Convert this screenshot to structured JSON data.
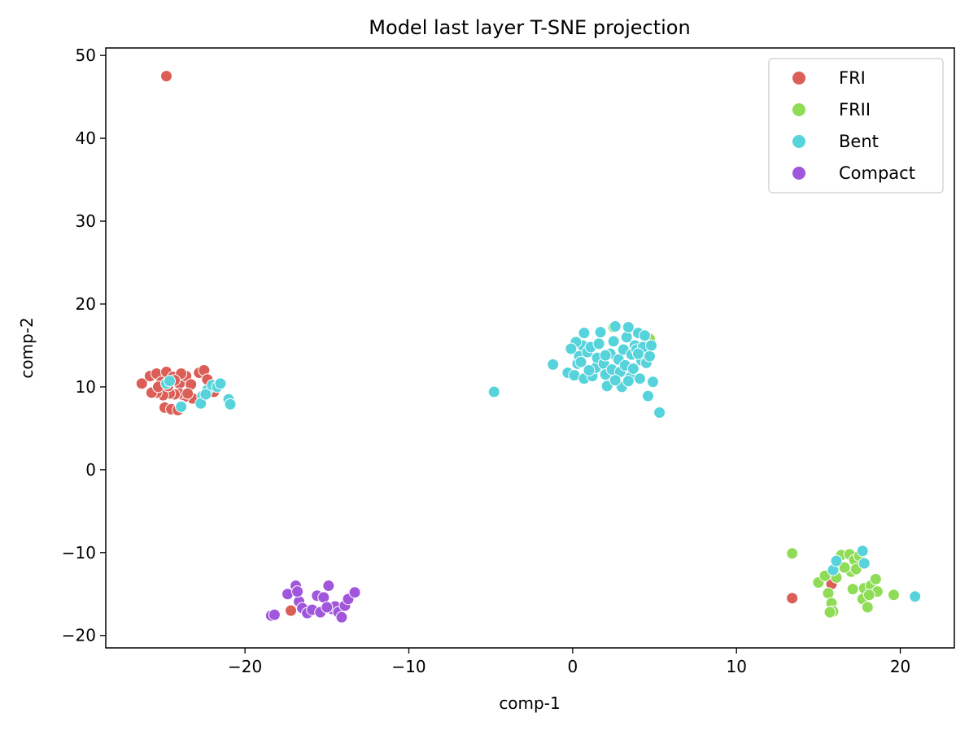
{
  "chart_data": {
    "type": "scatter",
    "title": "Model last layer T-SNE projection",
    "xlabel": "comp-1",
    "ylabel": "comp-2",
    "xlim": [
      -28.5,
      23.3
    ],
    "ylim": [
      -21.5,
      50.9
    ],
    "xticks": [
      -20,
      -10,
      0,
      10,
      20
    ],
    "yticks": [
      -20,
      -10,
      0,
      10,
      20,
      30,
      40,
      50
    ],
    "xtick_labels": [
      "−20",
      "−10",
      "0",
      "10",
      "20"
    ],
    "ytick_labels": [
      "−20",
      "−10",
      "0",
      "10",
      "20",
      "30",
      "40",
      "50"
    ],
    "grid": false,
    "legend_position": "top-right",
    "series": [
      {
        "name": "FRI",
        "color": "#db5f57",
        "points": [
          [
            -24.8,
            47.5
          ],
          [
            -26.3,
            10.4
          ],
          [
            -25.8,
            11.3
          ],
          [
            -25.4,
            11.6
          ],
          [
            -25.1,
            10.6
          ],
          [
            -24.8,
            11.8
          ],
          [
            -24.4,
            11.2
          ],
          [
            -24.0,
            10.4
          ],
          [
            -23.6,
            11.3
          ],
          [
            -23.3,
            10.3
          ],
          [
            -22.8,
            11.7
          ],
          [
            -22.5,
            12.0
          ],
          [
            -22.3,
            10.9
          ],
          [
            -21.9,
            9.4
          ],
          [
            -22.7,
            8.7
          ],
          [
            -23.2,
            8.6
          ],
          [
            -23.7,
            8.8
          ],
          [
            -24.0,
            9.2
          ],
          [
            -24.3,
            9.1
          ],
          [
            -24.6,
            9.2
          ],
          [
            -25.0,
            9.0
          ],
          [
            -25.4,
            9.3
          ],
          [
            -25.7,
            9.3
          ],
          [
            -24.9,
            7.5
          ],
          [
            -24.5,
            7.3
          ],
          [
            -24.1,
            7.2
          ],
          [
            -23.9,
            7.7
          ],
          [
            -23.5,
            9.2
          ],
          [
            -24.7,
            10.1
          ],
          [
            -25.3,
            10.0
          ],
          [
            -23.9,
            11.6
          ],
          [
            -24.3,
            10.8
          ],
          [
            -17.2,
            -17.0
          ],
          [
            15.8,
            -13.8
          ],
          [
            13.4,
            -15.5
          ]
        ]
      },
      {
        "name": "FRII",
        "color": "#8fdc57",
        "points": [
          [
            13.4,
            -10.1
          ],
          [
            15.0,
            -13.6
          ],
          [
            15.4,
            -12.8
          ],
          [
            15.6,
            -14.9
          ],
          [
            15.8,
            -16.1
          ],
          [
            15.9,
            -17.1
          ],
          [
            15.7,
            -17.2
          ],
          [
            16.4,
            -10.3
          ],
          [
            16.9,
            -10.2
          ],
          [
            17.2,
            -10.9
          ],
          [
            17.0,
            -12.3
          ],
          [
            17.1,
            -14.4
          ],
          [
            17.5,
            -10.4
          ],
          [
            17.8,
            -14.3
          ],
          [
            17.7,
            -15.6
          ],
          [
            18.0,
            -16.6
          ],
          [
            18.2,
            -14.0
          ],
          [
            18.5,
            -13.2
          ],
          [
            18.6,
            -14.7
          ],
          [
            19.6,
            -15.1
          ],
          [
            16.1,
            -13.0
          ],
          [
            17.3,
            -12.0
          ],
          [
            16.6,
            -11.8
          ],
          [
            18.1,
            -15.1
          ],
          [
            2.5,
            17.2
          ],
          [
            4.7,
            15.8
          ]
        ]
      },
      {
        "name": "Bent",
        "color": "#57d3db",
        "points": [
          [
            -24.8,
            10.4
          ],
          [
            -24.6,
            10.7
          ],
          [
            -23.9,
            7.6
          ],
          [
            -22.6,
            8.9
          ],
          [
            -22.7,
            8.0
          ],
          [
            -22.3,
            9.6
          ],
          [
            -22.0,
            10.2
          ],
          [
            -21.7,
            10.0
          ],
          [
            -21.5,
            10.4
          ],
          [
            -21.0,
            8.5
          ],
          [
            -20.9,
            7.9
          ],
          [
            -22.4,
            9.1
          ],
          [
            -4.8,
            9.4
          ],
          [
            -1.2,
            12.7
          ],
          [
            -0.3,
            11.7
          ],
          [
            0.1,
            11.4
          ],
          [
            0.3,
            12.8
          ],
          [
            0.4,
            13.7
          ],
          [
            0.6,
            15.0
          ],
          [
            0.7,
            16.5
          ],
          [
            0.9,
            14.2
          ],
          [
            1.1,
            14.8
          ],
          [
            0.7,
            11.0
          ],
          [
            1.2,
            11.3
          ],
          [
            1.4,
            12.3
          ],
          [
            1.5,
            13.5
          ],
          [
            1.6,
            15.2
          ],
          [
            1.7,
            16.6
          ],
          [
            1.9,
            12.8
          ],
          [
            2.0,
            11.5
          ],
          [
            2.1,
            10.1
          ],
          [
            2.3,
            14.0
          ],
          [
            2.4,
            12.1
          ],
          [
            2.5,
            15.5
          ],
          [
            2.6,
            17.3
          ],
          [
            2.8,
            13.3
          ],
          [
            2.9,
            11.8
          ],
          [
            3.0,
            10.0
          ],
          [
            3.1,
            14.5
          ],
          [
            3.2,
            12.6
          ],
          [
            3.3,
            16.0
          ],
          [
            3.4,
            17.2
          ],
          [
            3.5,
            11.1
          ],
          [
            3.6,
            13.9
          ],
          [
            3.7,
            12.2
          ],
          [
            3.8,
            15.0
          ],
          [
            3.9,
            14.5
          ],
          [
            4.0,
            16.5
          ],
          [
            4.1,
            11.0
          ],
          [
            4.2,
            13.2
          ],
          [
            4.3,
            14.8
          ],
          [
            4.4,
            16.2
          ],
          [
            4.5,
            12.9
          ],
          [
            4.6,
            8.9
          ],
          [
            4.7,
            13.7
          ],
          [
            4.8,
            15.0
          ],
          [
            4.9,
            10.6
          ],
          [
            5.3,
            6.9
          ],
          [
            0.2,
            15.4
          ],
          [
            -0.1,
            14.6
          ],
          [
            0.5,
            13.0
          ],
          [
            2.6,
            10.8
          ],
          [
            3.4,
            10.7
          ],
          [
            4.0,
            14.0
          ],
          [
            1.0,
            12.0
          ],
          [
            2.0,
            13.8
          ],
          [
            15.9,
            -12.1
          ],
          [
            16.1,
            -11.0
          ],
          [
            17.7,
            -9.8
          ],
          [
            17.8,
            -11.3
          ],
          [
            20.9,
            -15.3
          ]
        ]
      },
      {
        "name": "Compact",
        "color": "#a157db",
        "points": [
          [
            -18.4,
            -17.6
          ],
          [
            -18.2,
            -17.5
          ],
          [
            -17.4,
            -15.0
          ],
          [
            -16.9,
            -14.0
          ],
          [
            -16.7,
            -15.9
          ],
          [
            -16.5,
            -16.7
          ],
          [
            -16.2,
            -17.3
          ],
          [
            -15.9,
            -16.9
          ],
          [
            -15.6,
            -15.2
          ],
          [
            -15.4,
            -17.2
          ],
          [
            -15.2,
            -15.4
          ],
          [
            -14.9,
            -14.0
          ],
          [
            -14.7,
            -16.8
          ],
          [
            -14.5,
            -16.5
          ],
          [
            -14.3,
            -17.2
          ],
          [
            -14.1,
            -17.8
          ],
          [
            -13.9,
            -16.4
          ],
          [
            -13.7,
            -15.6
          ],
          [
            -13.3,
            -14.8
          ],
          [
            -15.0,
            -16.6
          ],
          [
            -16.8,
            -14.7
          ]
        ]
      }
    ]
  }
}
